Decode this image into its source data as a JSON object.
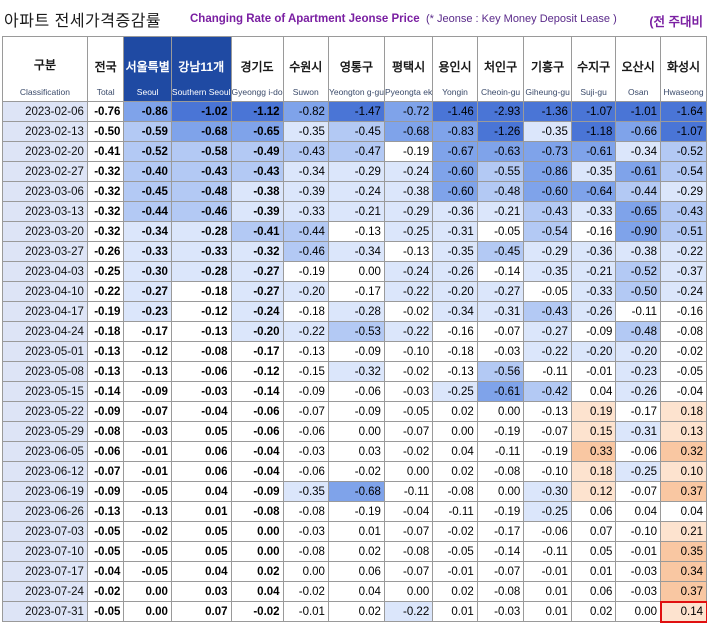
{
  "title": {
    "korean": "아파트 전세가격증감률",
    "english": "Changing Rate of Apartment Jeonse Price",
    "note": "(* Jeonse : Key Money Deposit Lease )",
    "right_label": "(전 주대비"
  },
  "columns": [
    {
      "kr": "구분",
      "en": "Classification"
    },
    {
      "kr": "전국",
      "en": "Total"
    },
    {
      "kr": "서울특별",
      "en": "Seoul"
    },
    {
      "kr": "강남11개",
      "en": "Southern Seoul"
    },
    {
      "kr": "경기도",
      "en": "Gyeongg i-do"
    },
    {
      "kr": "수원시",
      "en": "Suwon"
    },
    {
      "kr": "영통구",
      "en": "Yeongton g-gu"
    },
    {
      "kr": "평택시",
      "en": "Pyeongta ek"
    },
    {
      "kr": "용인시",
      "en": "Yongin"
    },
    {
      "kr": "처인구",
      "en": "Cheoin-gu"
    },
    {
      "kr": "기흥구",
      "en": "Giheung-gu"
    },
    {
      "kr": "수지구",
      "en": "Suji-gu"
    },
    {
      "kr": "오산시",
      "en": "Osan"
    },
    {
      "kr": "화성시",
      "en": "Hwaseong"
    }
  ],
  "rows": [
    {
      "date": "2023-02-06",
      "values": [
        "-0.76",
        "-0.86",
        "-1.02",
        "-1.12",
        "-0.82",
        "-1.47",
        "-0.72",
        "-1.46",
        "-2.93",
        "-1.36",
        "-1.07",
        "-1.01",
        "-1.64"
      ]
    },
    {
      "date": "2023-02-13",
      "values": [
        "-0.50",
        "-0.59",
        "-0.68",
        "-0.65",
        "-0.35",
        "-0.45",
        "-0.68",
        "-0.83",
        "-1.26",
        "-0.35",
        "-1.18",
        "-0.66",
        "-1.07"
      ]
    },
    {
      "date": "2023-02-20",
      "values": [
        "-0.41",
        "-0.52",
        "-0.58",
        "-0.49",
        "-0.43",
        "-0.47",
        "-0.19",
        "-0.67",
        "-0.63",
        "-0.73",
        "-0.61",
        "-0.34",
        "-0.52"
      ]
    },
    {
      "date": "2023-02-27",
      "values": [
        "-0.32",
        "-0.40",
        "-0.43",
        "-0.43",
        "-0.34",
        "-0.29",
        "-0.24",
        "-0.60",
        "-0.55",
        "-0.86",
        "-0.35",
        "-0.61",
        "-0.54"
      ]
    },
    {
      "date": "2023-03-06",
      "values": [
        "-0.32",
        "-0.45",
        "-0.48",
        "-0.38",
        "-0.39",
        "-0.24",
        "-0.38",
        "-0.60",
        "-0.48",
        "-0.60",
        "-0.64",
        "-0.44",
        "-0.29"
      ]
    },
    {
      "date": "2023-03-13",
      "values": [
        "-0.32",
        "-0.44",
        "-0.46",
        "-0.39",
        "-0.33",
        "-0.21",
        "-0.29",
        "-0.36",
        "-0.21",
        "-0.43",
        "-0.33",
        "-0.65",
        "-0.43"
      ]
    },
    {
      "date": "2023-03-20",
      "values": [
        "-0.32",
        "-0.34",
        "-0.28",
        "-0.41",
        "-0.44",
        "-0.13",
        "-0.25",
        "-0.31",
        "-0.05",
        "-0.54",
        "-0.16",
        "-0.90",
        "-0.51"
      ]
    },
    {
      "date": "2023-03-27",
      "values": [
        "-0.26",
        "-0.33",
        "-0.33",
        "-0.32",
        "-0.46",
        "-0.34",
        "-0.13",
        "-0.35",
        "-0.45",
        "-0.29",
        "-0.36",
        "-0.38",
        "-0.22"
      ]
    },
    {
      "date": "2023-04-03",
      "values": [
        "-0.25",
        "-0.30",
        "-0.28",
        "-0.27",
        "-0.19",
        "0.00",
        "-0.24",
        "-0.26",
        "-0.14",
        "-0.35",
        "-0.21",
        "-0.52",
        "-0.37"
      ]
    },
    {
      "date": "2023-04-10",
      "values": [
        "-0.22",
        "-0.27",
        "-0.18",
        "-0.27",
        "-0.20",
        "-0.17",
        "-0.22",
        "-0.20",
        "-0.27",
        "-0.05",
        "-0.33",
        "-0.50",
        "-0.24"
      ]
    },
    {
      "date": "2023-04-17",
      "values": [
        "-0.19",
        "-0.23",
        "-0.12",
        "-0.24",
        "-0.18",
        "-0.28",
        "-0.02",
        "-0.34",
        "-0.31",
        "-0.43",
        "-0.26",
        "-0.11",
        "-0.16"
      ]
    },
    {
      "date": "2023-04-24",
      "values": [
        "-0.18",
        "-0.17",
        "-0.13",
        "-0.20",
        "-0.22",
        "-0.53",
        "-0.22",
        "-0.16",
        "-0.07",
        "-0.27",
        "-0.09",
        "-0.48",
        "-0.08"
      ]
    },
    {
      "date": "2023-05-01",
      "values": [
        "-0.13",
        "-0.12",
        "-0.08",
        "-0.17",
        "-0.13",
        "-0.09",
        "-0.10",
        "-0.18",
        "-0.03",
        "-0.22",
        "-0.20",
        "-0.20",
        "-0.02"
      ]
    },
    {
      "date": "2023-05-08",
      "values": [
        "-0.13",
        "-0.13",
        "-0.06",
        "-0.12",
        "-0.15",
        "-0.32",
        "-0.02",
        "-0.13",
        "-0.56",
        "-0.11",
        "-0.01",
        "-0.23",
        "-0.05"
      ]
    },
    {
      "date": "2023-05-15",
      "values": [
        "-0.14",
        "-0.09",
        "-0.03",
        "-0.14",
        "-0.09",
        "-0.06",
        "-0.03",
        "-0.25",
        "-0.61",
        "-0.42",
        "0.04",
        "-0.26",
        "-0.04"
      ]
    },
    {
      "date": "2023-05-22",
      "values": [
        "-0.09",
        "-0.07",
        "-0.04",
        "-0.06",
        "-0.07",
        "-0.09",
        "-0.05",
        "0.02",
        "0.00",
        "-0.13",
        "0.19",
        "-0.17",
        "0.18"
      ]
    },
    {
      "date": "2023-05-29",
      "values": [
        "-0.08",
        "-0.03",
        "0.05",
        "-0.06",
        "-0.06",
        "0.00",
        "-0.07",
        "0.00",
        "-0.19",
        "-0.07",
        "0.15",
        "-0.31",
        "0.13"
      ]
    },
    {
      "date": "2023-06-05",
      "values": [
        "-0.06",
        "-0.01",
        "0.06",
        "-0.04",
        "-0.03",
        "0.03",
        "-0.02",
        "0.04",
        "-0.11",
        "-0.19",
        "0.33",
        "-0.06",
        "0.32"
      ]
    },
    {
      "date": "2023-06-12",
      "values": [
        "-0.07",
        "-0.01",
        "0.06",
        "-0.04",
        "-0.06",
        "-0.02",
        "0.00",
        "0.02",
        "-0.08",
        "-0.10",
        "0.18",
        "-0.25",
        "0.10"
      ]
    },
    {
      "date": "2023-06-19",
      "values": [
        "-0.09",
        "-0.05",
        "0.04",
        "-0.09",
        "-0.35",
        "-0.68",
        "-0.11",
        "-0.08",
        "0.00",
        "-0.30",
        "0.12",
        "-0.07",
        "0.37"
      ]
    },
    {
      "date": "2023-06-26",
      "values": [
        "-0.13",
        "-0.13",
        "0.01",
        "-0.08",
        "-0.08",
        "-0.19",
        "-0.04",
        "-0.11",
        "-0.19",
        "-0.25",
        "0.06",
        "0.04",
        "0.04"
      ]
    },
    {
      "date": "2023-07-03",
      "values": [
        "-0.05",
        "-0.02",
        "0.05",
        "0.00",
        "-0.03",
        "0.01",
        "-0.07",
        "-0.02",
        "-0.17",
        "-0.06",
        "0.07",
        "-0.10",
        "0.21"
      ]
    },
    {
      "date": "2023-07-10",
      "values": [
        "-0.05",
        "-0.05",
        "0.05",
        "0.00",
        "-0.08",
        "0.02",
        "-0.08",
        "-0.05",
        "-0.14",
        "-0.11",
        "0.05",
        "-0.01",
        "0.35"
      ]
    },
    {
      "date": "2023-07-17",
      "values": [
        "-0.04",
        "-0.05",
        "0.04",
        "0.02",
        "0.00",
        "0.06",
        "-0.07",
        "-0.01",
        "-0.07",
        "-0.01",
        "0.01",
        "-0.03",
        "0.34"
      ]
    },
    {
      "date": "2023-07-24",
      "values": [
        "-0.02",
        "0.00",
        "0.03",
        "0.04",
        "-0.02",
        "0.04",
        "0.00",
        "0.02",
        "-0.08",
        "0.01",
        "0.06",
        "-0.03",
        "0.37"
      ]
    },
    {
      "date": "2023-07-31",
      "values": [
        "-0.05",
        "0.00",
        "0.07",
        "-0.02",
        "-0.01",
        "0.02",
        "-0.22",
        "0.01",
        "-0.03",
        "0.01",
        "0.02",
        "0.00",
        "0.14"
      ]
    }
  ],
  "colors": {
    "header_dark": "#1f4aa3",
    "date_bg": "#dde4f6",
    "negative_scale": [
      "#ffffff",
      "#dbe6fb",
      "#b3c9f4",
      "#7fa3ea",
      "#4a75d6"
    ],
    "positive_scale": [
      "#ffffff",
      "#fde3cf",
      "#f9c7a2"
    ],
    "highlight_border": "#e01010"
  },
  "highlight": {
    "row_date": "2023-07-31",
    "column_en": "Hwaseong"
  }
}
